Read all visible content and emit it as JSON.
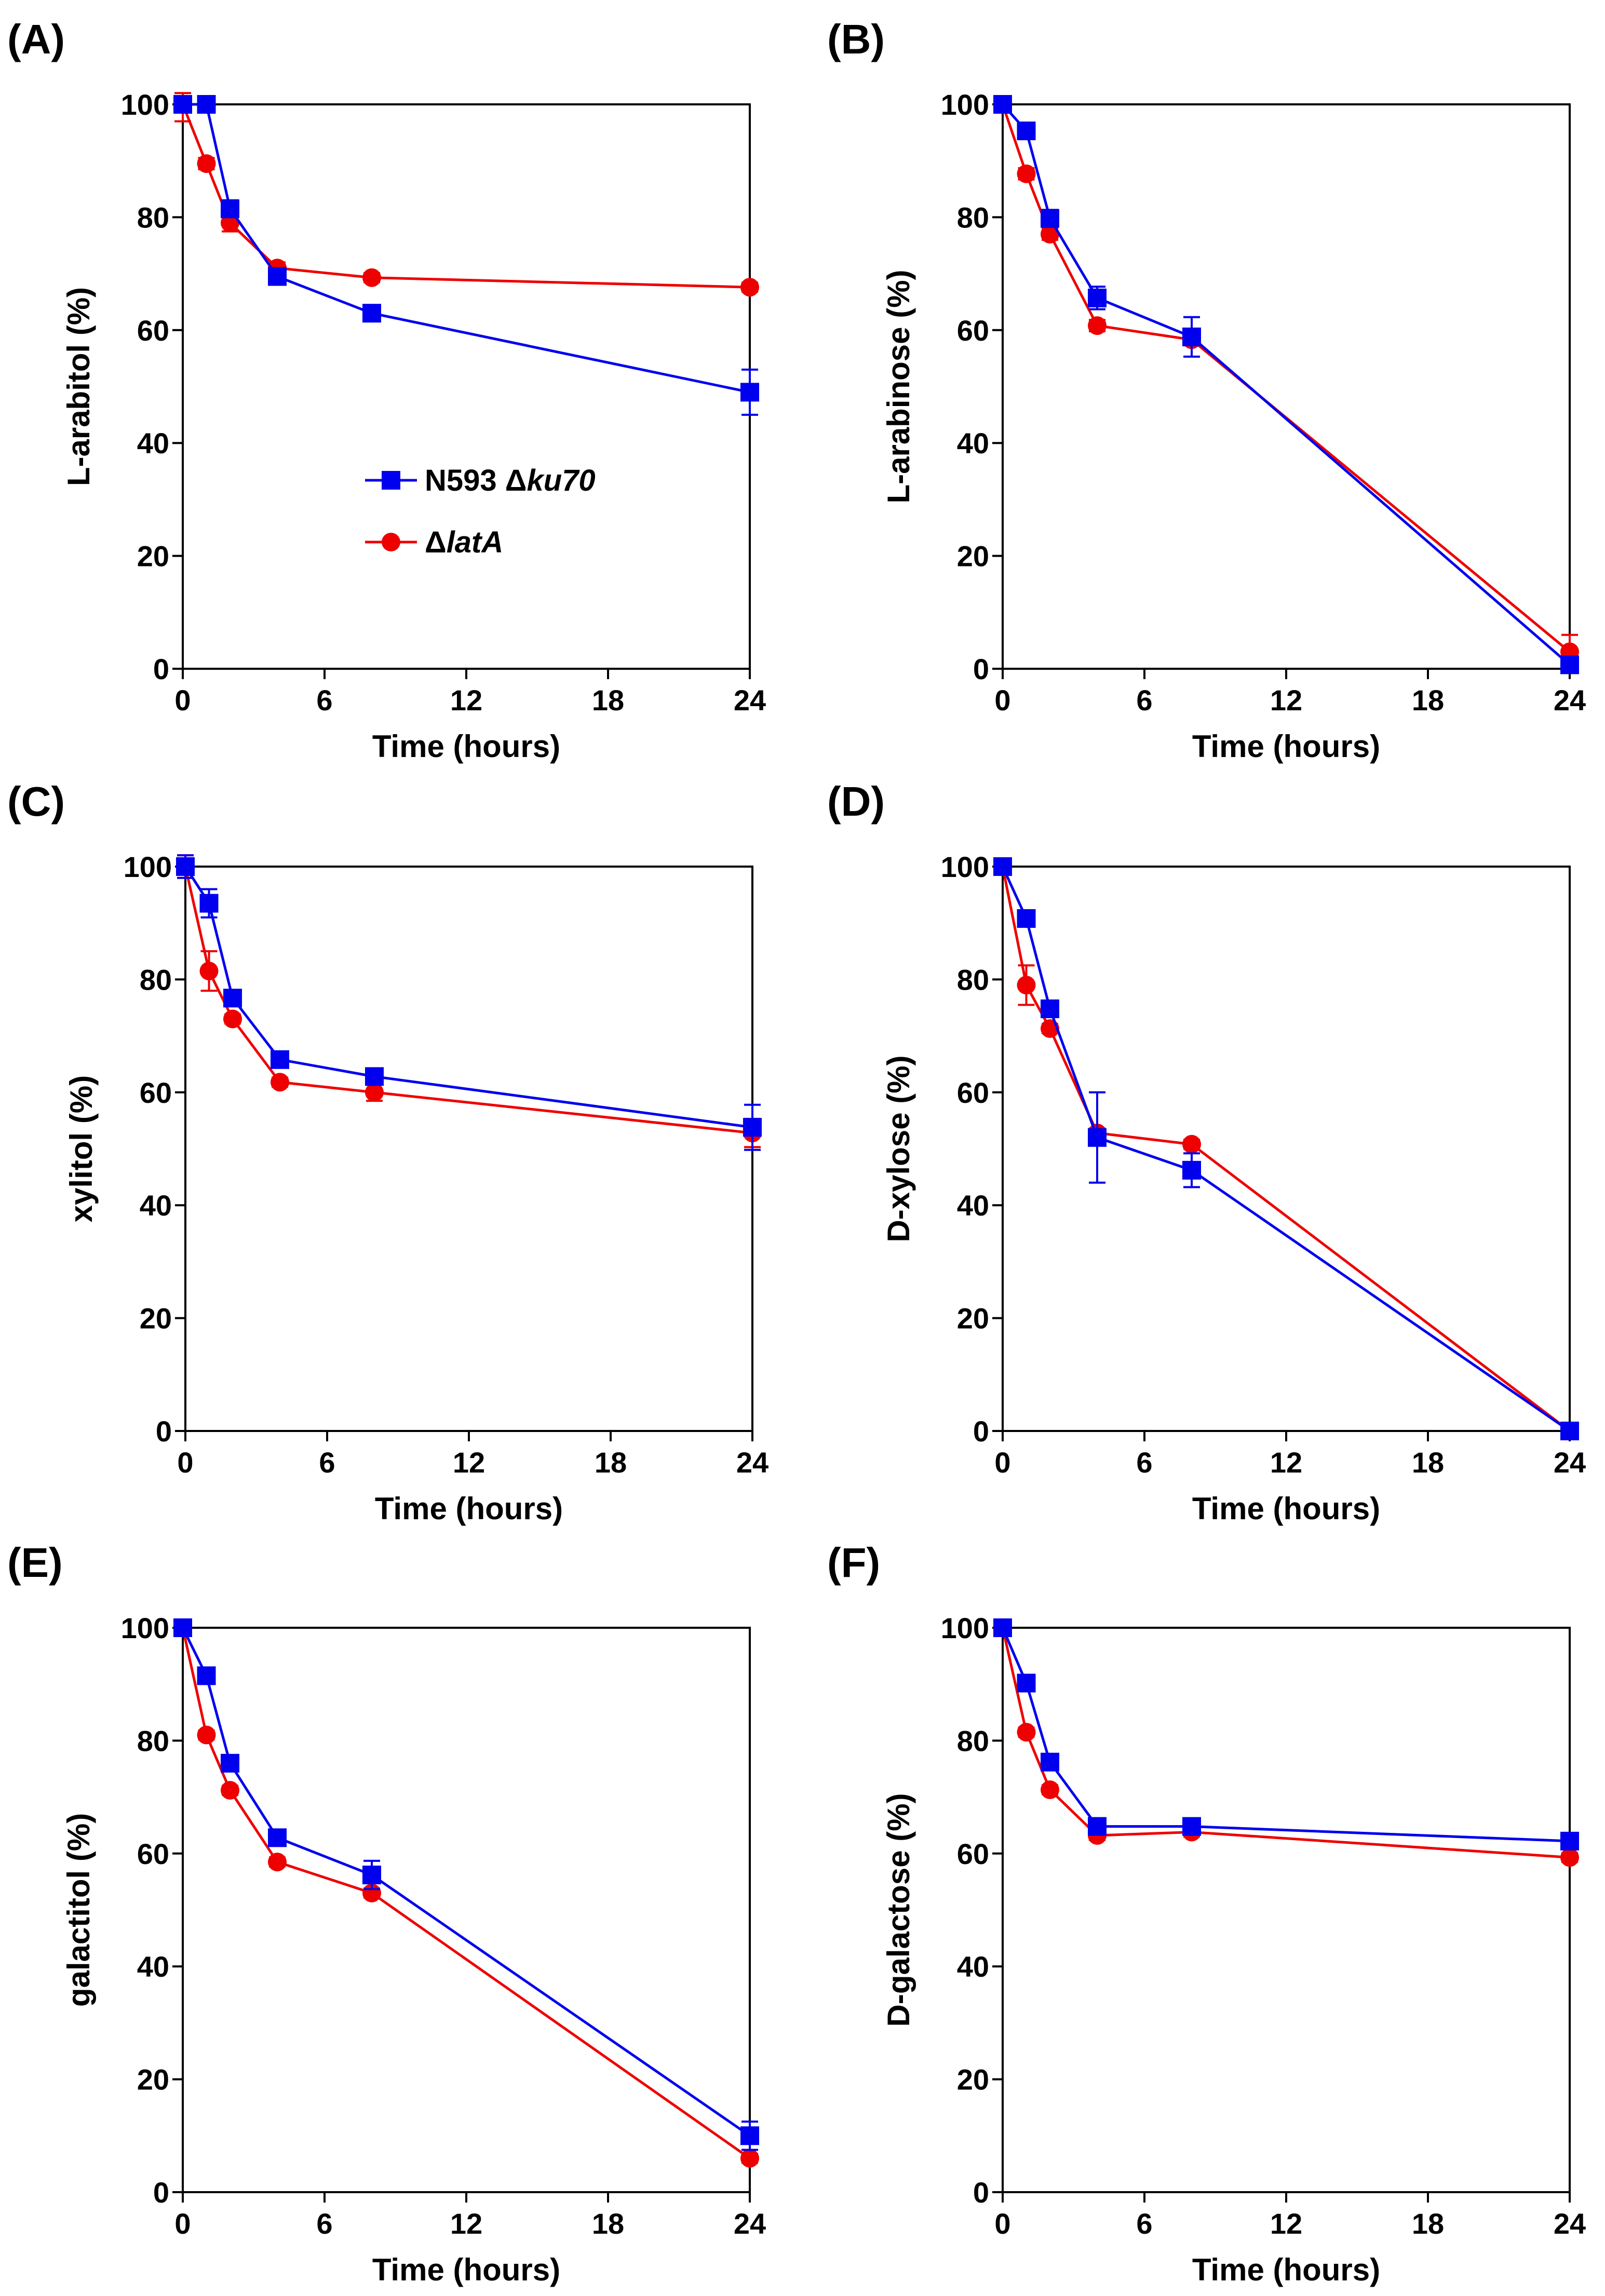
{
  "colors": {
    "wild_type": "#0000ee",
    "mutant": "#ee0000",
    "axis": "#000000"
  },
  "legend": {
    "items": [
      {
        "series": "wild_type",
        "marker": "square",
        "prefix": "N593 Δ",
        "italic": "ku70"
      },
      {
        "series": "mutant",
        "marker": "circle",
        "prefix": "Δ",
        "italic": "latA"
      }
    ]
  },
  "chart_data": [
    {
      "panel": "(A)",
      "type": "line",
      "xlabel": "Time (hours)",
      "ylabel": "L-arabitol (%)",
      "xlim": [
        0,
        24
      ],
      "ylim": [
        0,
        100
      ],
      "xticks": [
        0,
        6,
        12,
        18,
        24
      ],
      "yticks": [
        0,
        20,
        40,
        60,
        80,
        100
      ],
      "x": [
        0,
        1,
        2,
        4,
        8,
        24
      ],
      "series": [
        {
          "name": "N593 Δku70",
          "key": "wild_type",
          "values": [
            100,
            100,
            81.5,
            69.5,
            63,
            49
          ],
          "errors": [
            0,
            0,
            1.5,
            1,
            0.8,
            4
          ]
        },
        {
          "name": "ΔlatA",
          "key": "mutant",
          "values": [
            100,
            89.5,
            79,
            71,
            69.3,
            67.6
          ],
          "errors": [
            3,
            1,
            1.5,
            1,
            0.8,
            0.8
          ]
        }
      ]
    },
    {
      "panel": "(B)",
      "type": "line",
      "xlabel": "Time (hours)",
      "ylabel": "L-arabinose (%)",
      "xlim": [
        0,
        24
      ],
      "ylim": [
        0,
        100
      ],
      "xticks": [
        0,
        6,
        12,
        18,
        24
      ],
      "yticks": [
        0,
        20,
        40,
        60,
        80,
        100
      ],
      "x": [
        0,
        1,
        2,
        4,
        8,
        24
      ],
      "series": [
        {
          "name": "N593 Δku70",
          "key": "wild_type",
          "values": [
            100,
            95.3,
            79.8,
            65.7,
            58.8,
            0.7
          ],
          "errors": [
            0,
            0.8,
            1.5,
            2,
            3.5,
            0.8
          ]
        },
        {
          "name": "ΔlatA",
          "key": "mutant",
          "values": [
            100,
            87.7,
            77,
            60.8,
            58.3,
            3
          ],
          "errors": [
            0,
            1,
            1,
            1,
            1,
            3
          ]
        }
      ]
    },
    {
      "panel": "(C)",
      "type": "line",
      "xlabel": "Time (hours)",
      "ylabel": "xylitol (%)",
      "xlim": [
        0,
        24
      ],
      "ylim": [
        0,
        100
      ],
      "xticks": [
        0,
        6,
        12,
        18,
        24
      ],
      "yticks": [
        0,
        20,
        40,
        60,
        80,
        100
      ],
      "x": [
        0,
        1,
        2,
        4,
        8,
        24
      ],
      "series": [
        {
          "name": "N593 Δku70",
          "key": "wild_type",
          "values": [
            100,
            93.5,
            76.7,
            65.8,
            62.8,
            53.8
          ],
          "errors": [
            2,
            2.5,
            1,
            0.8,
            0.8,
            4
          ]
        },
        {
          "name": "ΔlatA",
          "key": "mutant",
          "values": [
            100,
            81.5,
            73,
            61.8,
            60,
            52.8
          ],
          "errors": [
            2,
            3.5,
            0.8,
            0.8,
            1.5,
            2.5
          ]
        }
      ]
    },
    {
      "panel": "(D)",
      "type": "line",
      "xlabel": "Time (hours)",
      "ylabel": "D-xylose (%)",
      "xlim": [
        0,
        24
      ],
      "ylim": [
        0,
        100
      ],
      "xticks": [
        0,
        6,
        12,
        18,
        24
      ],
      "yticks": [
        0,
        20,
        40,
        60,
        80,
        100
      ],
      "x": [
        0,
        1,
        2,
        4,
        8,
        24
      ],
      "series": [
        {
          "name": "N593 Δku70",
          "key": "wild_type",
          "values": [
            100,
            90.8,
            74.8,
            52,
            46.2,
            0
          ],
          "errors": [
            0,
            0.8,
            1,
            8,
            3,
            0
          ]
        },
        {
          "name": "ΔlatA",
          "key": "mutant",
          "values": [
            100,
            79,
            71.3,
            52.8,
            50.8,
            0
          ],
          "errors": [
            0,
            3.5,
            0.8,
            0.8,
            0.8,
            0
          ]
        }
      ]
    },
    {
      "panel": "(E)",
      "type": "line",
      "xlabel": "Time (hours)",
      "ylabel": "galactitol (%)",
      "xlim": [
        0,
        24
      ],
      "ylim": [
        0,
        100
      ],
      "xticks": [
        0,
        6,
        12,
        18,
        24
      ],
      "yticks": [
        0,
        20,
        40,
        60,
        80,
        100
      ],
      "x": [
        0,
        1,
        2,
        4,
        8,
        24
      ],
      "series": [
        {
          "name": "N593 Δku70",
          "key": "wild_type",
          "values": [
            100,
            91.5,
            76,
            62.8,
            56.2,
            10
          ],
          "errors": [
            0,
            1,
            1,
            0.8,
            2.5,
            2.5
          ]
        },
        {
          "name": "ΔlatA",
          "key": "mutant",
          "values": [
            100,
            81,
            71.2,
            58.5,
            53,
            6
          ],
          "errors": [
            0,
            0.8,
            0.8,
            0.8,
            0.8,
            0.8
          ]
        }
      ]
    },
    {
      "panel": "(F)",
      "type": "line",
      "xlabel": "Time (hours)",
      "ylabel": "D-galactose (%)",
      "xlim": [
        0,
        24
      ],
      "ylim": [
        0,
        100
      ],
      "xticks": [
        0,
        6,
        12,
        18,
        24
      ],
      "yticks": [
        0,
        20,
        40,
        60,
        80,
        100
      ],
      "x": [
        0,
        1,
        2,
        4,
        8,
        24
      ],
      "series": [
        {
          "name": "N593 Δku70",
          "key": "wild_type",
          "values": [
            100,
            90.2,
            76.2,
            64.8,
            64.8,
            62.2
          ],
          "errors": [
            0,
            0.8,
            1,
            0.8,
            0.8,
            0.8
          ]
        },
        {
          "name": "ΔlatA",
          "key": "mutant",
          "values": [
            100,
            81.5,
            71.3,
            63.2,
            63.8,
            59.3
          ],
          "errors": [
            0,
            0.8,
            0.8,
            0.8,
            0.8,
            0.8
          ]
        }
      ]
    }
  ]
}
